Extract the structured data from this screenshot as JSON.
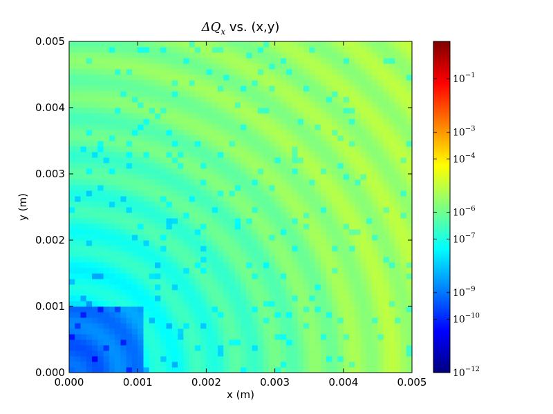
{
  "chart_data": {
    "type": "heatmap",
    "title_main": "ΔQ",
    "title_sub": "x",
    "title_rest": " vs. (x,y)",
    "xlabel": "x (m)",
    "ylabel": "y (m)",
    "xlim": [
      0.0,
      0.005
    ],
    "ylim": [
      0.0,
      0.005
    ],
    "x_ticks": [
      "0.000",
      "0.001",
      "0.002",
      "0.003",
      "0.004",
      "0.005"
    ],
    "y_ticks": [
      "0.000",
      "0.001",
      "0.002",
      "0.003",
      "0.004",
      "0.005"
    ],
    "grid_size": [
      60,
      60
    ],
    "colormap": "jet",
    "color_scale": "log",
    "colorbar_range_log10": [
      -12,
      0.4
    ],
    "colorbar_ticks": [
      {
        "base": "10",
        "exp": "−1",
        "log10": -1
      },
      {
        "base": "10",
        "exp": "−3",
        "log10": -3
      },
      {
        "base": "10",
        "exp": "−4",
        "log10": -4
      },
      {
        "base": "10",
        "exp": "−6",
        "log10": -6
      },
      {
        "base": "10",
        "exp": "−7",
        "log10": -7
      },
      {
        "base": "10",
        "exp": "−9",
        "log10": -9
      },
      {
        "base": "10",
        "exp": "−10",
        "log10": -10
      },
      {
        "base": "10",
        "exp": "−12",
        "log10": -12
      }
    ]
  }
}
